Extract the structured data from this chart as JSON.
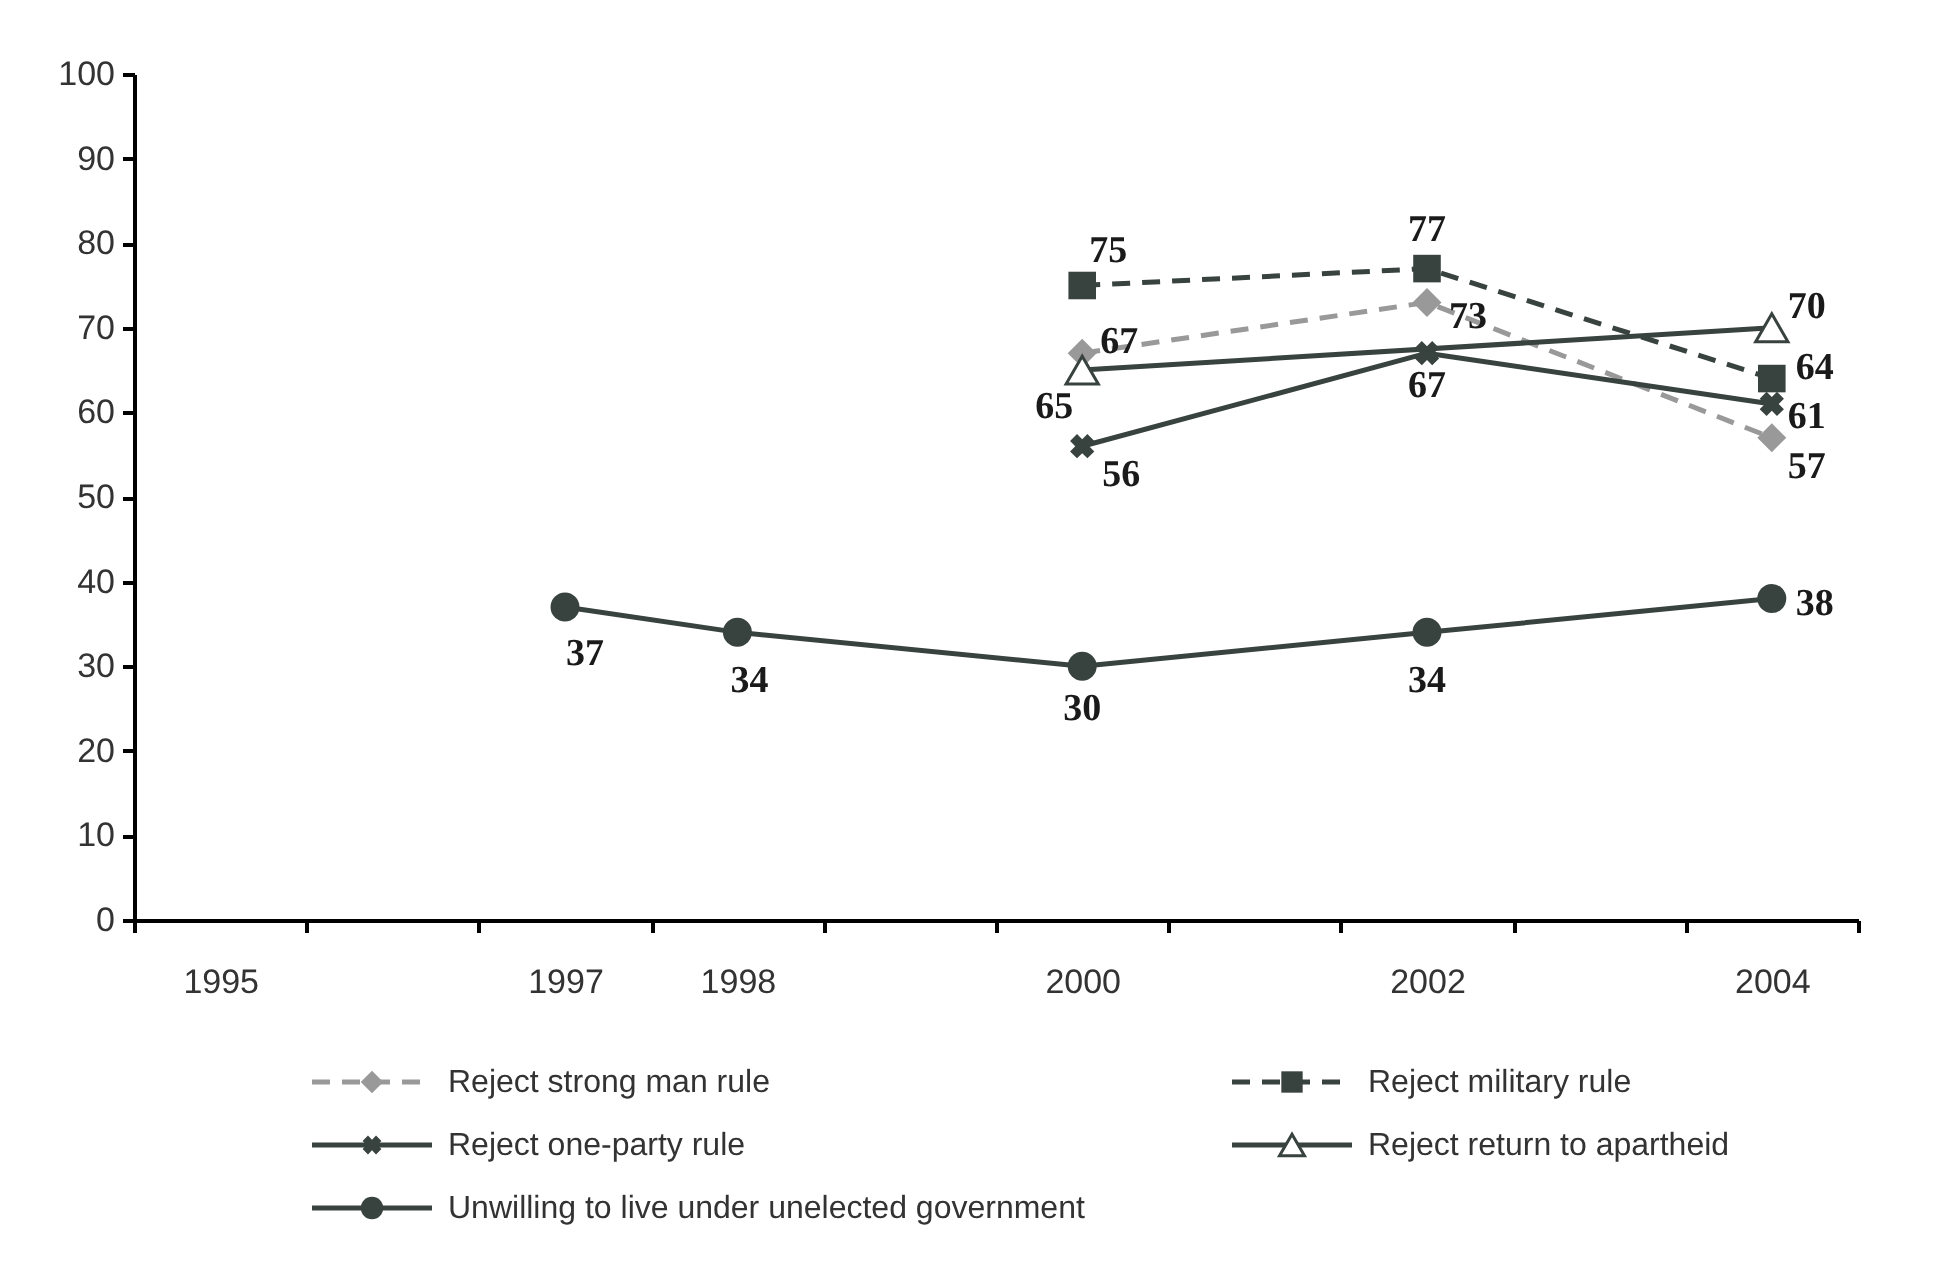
{
  "chart_data": {
    "type": "line",
    "categories": [
      "1995",
      null,
      "1997",
      "1998",
      null,
      "2000",
      null,
      "2002",
      null,
      "2004"
    ],
    "series": [
      {
        "name": "Reject strong man rule",
        "color": "#999999",
        "line_style": "dashed",
        "marker": "diamond",
        "values": [
          null,
          null,
          null,
          null,
          null,
          67,
          null,
          73,
          null,
          57
        ]
      },
      {
        "name": "Reject military rule",
        "color": "#38423f",
        "line_style": "dashed",
        "marker": "square",
        "values": [
          null,
          null,
          null,
          null,
          null,
          75,
          null,
          77,
          null,
          64
        ]
      },
      {
        "name": "Reject one-party rule",
        "color": "#38423f",
        "line_style": "solid",
        "marker": "cross",
        "values": [
          null,
          null,
          null,
          null,
          null,
          56,
          null,
          67,
          null,
          61
        ]
      },
      {
        "name": "Reject return to apartheid",
        "color": "#38423f",
        "line_style": "solid",
        "marker": "triangle",
        "values": [
          null,
          null,
          null,
          null,
          null,
          65,
          null,
          null,
          null,
          70
        ]
      },
      {
        "name": "Unwilling to live under unelected government",
        "color": "#38423f",
        "line_style": "solid",
        "marker": "circle",
        "values": [
          null,
          null,
          37,
          34,
          null,
          30,
          null,
          34,
          null,
          38
        ]
      }
    ],
    "ylim": [
      0,
      100
    ],
    "yticks": [
      0,
      10,
      20,
      30,
      40,
      50,
      60,
      70,
      80,
      90,
      100
    ],
    "grid": false,
    "legend": "bottom",
    "data_labels": true
  }
}
